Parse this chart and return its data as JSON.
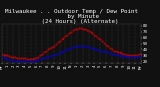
{
  "bg_color": "#111111",
  "plot_bg": "#111111",
  "grid_color": "#666666",
  "temp_color": "#ff0000",
  "dew_color": "#0000ff",
  "ylim": [
    18,
    82
  ],
  "xlim": [
    0,
    1440
  ],
  "yticks": [
    20,
    30,
    40,
    50,
    60,
    70,
    80
  ],
  "xtick_labels": [
    "Mf",
    "1",
    "2",
    "3",
    "4",
    "5",
    "6",
    "7",
    "8",
    "9",
    "10",
    "11",
    "N",
    "1",
    "2",
    "3",
    "4",
    "5",
    "6",
    "7",
    "8",
    "9",
    "10",
    "11",
    "Mf"
  ],
  "xtick_positions": [
    0,
    60,
    120,
    180,
    240,
    300,
    360,
    420,
    480,
    540,
    600,
    660,
    720,
    780,
    840,
    900,
    960,
    1020,
    1080,
    1140,
    1200,
    1260,
    1320,
    1380,
    1440
  ],
  "temp_x": [
    0,
    20,
    40,
    60,
    80,
    100,
    120,
    140,
    160,
    180,
    200,
    220,
    240,
    260,
    280,
    300,
    320,
    340,
    360,
    380,
    400,
    420,
    440,
    460,
    480,
    500,
    520,
    540,
    560,
    580,
    600,
    620,
    640,
    660,
    680,
    700,
    720,
    740,
    760,
    780,
    800,
    820,
    840,
    860,
    880,
    900,
    920,
    940,
    960,
    980,
    1000,
    1020,
    1040,
    1060,
    1080,
    1100,
    1120,
    1140,
    1160,
    1180,
    1200,
    1220,
    1240,
    1260,
    1280,
    1300,
    1320,
    1340,
    1360,
    1380,
    1400,
    1420,
    1440
  ],
  "temp_y": [
    32,
    31,
    30,
    30,
    29,
    28,
    28,
    27,
    26,
    26,
    25,
    25,
    25,
    24,
    24,
    24,
    24,
    25,
    26,
    28,
    30,
    33,
    36,
    38,
    40,
    42,
    44,
    46,
    49,
    52,
    54,
    57,
    59,
    62,
    64,
    67,
    69,
    72,
    74,
    75,
    76,
    76,
    75,
    74,
    73,
    71,
    69,
    67,
    64,
    62,
    59,
    57,
    54,
    51,
    48,
    45,
    42,
    40,
    38,
    37,
    36,
    35,
    34,
    33,
    32,
    31,
    31,
    30,
    30,
    30,
    31,
    32,
    32
  ],
  "dew_x": [
    0,
    20,
    40,
    60,
    80,
    100,
    120,
    140,
    160,
    180,
    200,
    220,
    240,
    260,
    280,
    300,
    320,
    340,
    360,
    380,
    400,
    420,
    440,
    460,
    480,
    500,
    520,
    540,
    560,
    580,
    600,
    620,
    640,
    660,
    680,
    700,
    720,
    740,
    760,
    780,
    800,
    820,
    840,
    860,
    880,
    900,
    920,
    940,
    960,
    980,
    1000,
    1020,
    1040,
    1060,
    1080,
    1100,
    1120,
    1140,
    1160,
    1180,
    1200,
    1220,
    1240,
    1260,
    1280,
    1300,
    1320,
    1340,
    1360,
    1380,
    1400,
    1420,
    1440
  ],
  "dew_y": [
    27,
    26,
    25,
    24,
    23,
    22,
    22,
    21,
    21,
    20,
    20,
    20,
    20,
    20,
    20,
    20,
    20,
    21,
    22,
    23,
    24,
    25,
    26,
    27,
    28,
    29,
    30,
    31,
    32,
    33,
    35,
    36,
    37,
    39,
    40,
    41,
    43,
    44,
    45,
    46,
    46,
    46,
    46,
    45,
    45,
    44,
    43,
    42,
    41,
    40,
    39,
    38,
    38,
    37,
    36,
    35,
    34,
    33,
    33,
    32,
    31,
    30,
    29,
    29,
    29,
    28,
    28,
    28,
    28,
    28,
    28,
    29,
    29
  ],
  "title_fontsize": 4.2,
  "tick_fontsize": 3.0,
  "ytick_fontsize": 3.0,
  "marker_size": 0.7
}
